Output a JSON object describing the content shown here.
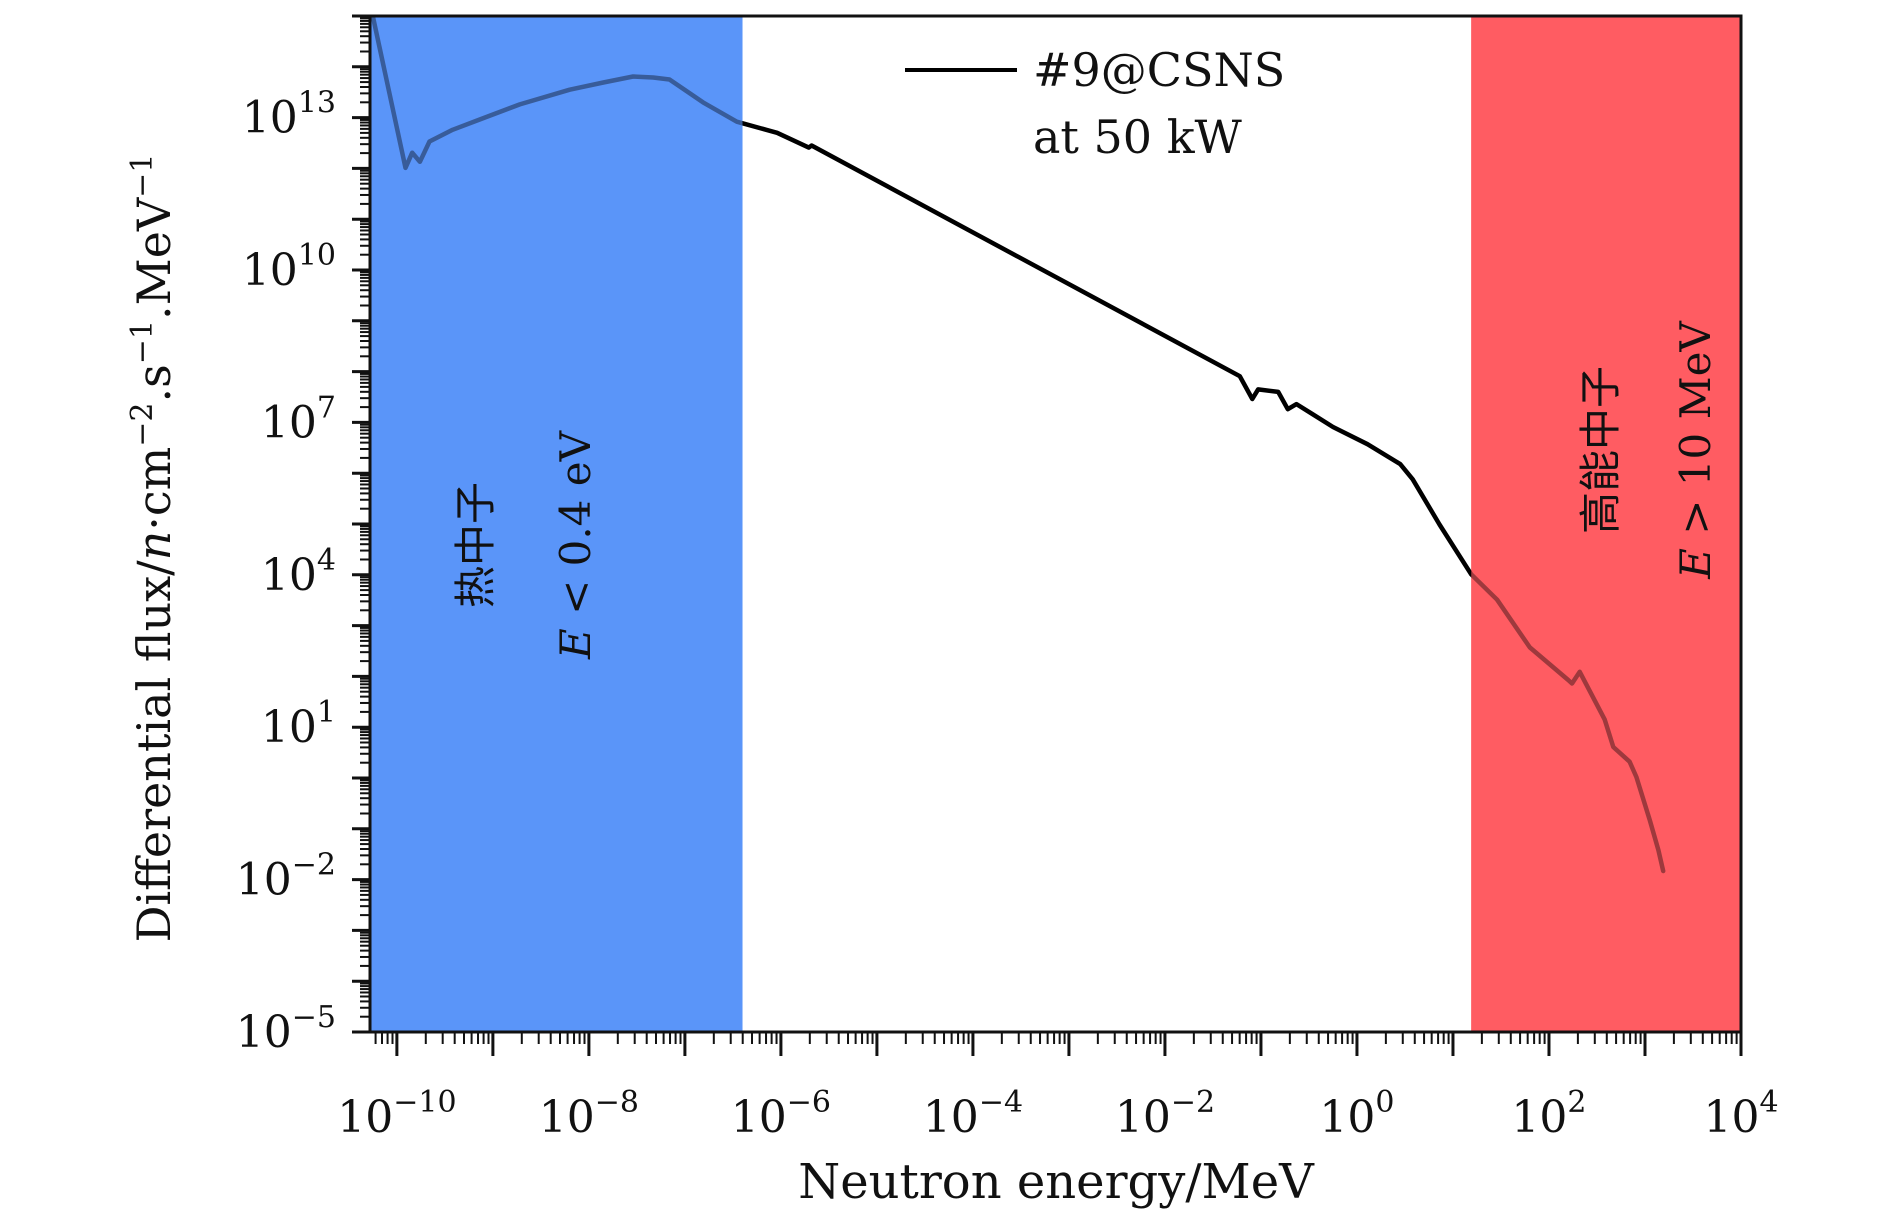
{
  "chart_data": {
    "type": "line",
    "title": "",
    "xlabel": "Neutron energy/MeV",
    "ylabel_parts": {
      "main": "Differential flux/",
      "n": "n",
      "rest": "·cm",
      "exp1": "−2",
      "s": ".s",
      "exp2": "−1",
      "mev": ".MeV",
      "exp3": "−1"
    },
    "xscale": "log",
    "yscale": "log",
    "xlim_log10": [
      -10.28,
      4
    ],
    "ylim_log10": [
      -5,
      15
    ],
    "x_ticks": [
      {
        "base": "10",
        "exp": "−10",
        "log10": -10
      },
      {
        "base": "10",
        "exp": "−8",
        "log10": -8
      },
      {
        "base": "10",
        "exp": "−6",
        "log10": -6
      },
      {
        "base": "10",
        "exp": "−4",
        "log10": -4
      },
      {
        "base": "10",
        "exp": "−2",
        "log10": -2
      },
      {
        "base": "10",
        "exp": "0",
        "log10": 0
      },
      {
        "base": "10",
        "exp": "2",
        "log10": 2
      },
      {
        "base": "10",
        "exp": "4",
        "log10": 4
      }
    ],
    "y_ticks": [
      {
        "base": "10",
        "exp": "−5",
        "log10": -5
      },
      {
        "base": "10",
        "exp": "−2",
        "log10": -2
      },
      {
        "base": "10",
        "exp": "1",
        "log10": 1
      },
      {
        "base": "10",
        "exp": "4",
        "log10": 4
      },
      {
        "base": "10",
        "exp": "7",
        "log10": 7
      },
      {
        "base": "10",
        "exp": "10",
        "log10": 10
      },
      {
        "base": "10",
        "exp": "13",
        "log10": 13
      }
    ],
    "grid": false,
    "legend": {
      "placement": "top-center",
      "entries": [
        {
          "label_line1": "#9@CSNS",
          "label_line2": "at 50 kW",
          "color": "#000000"
        }
      ]
    },
    "regions": [
      {
        "name": "thermal",
        "label_cn": "热中子",
        "label_cond_var": "E",
        "label_cond_rest": " < 0.4 eV",
        "x_from_log10": -10.28,
        "x_to_log10": -6.4,
        "color": "#5b95f9"
      },
      {
        "name": "high-energy",
        "label_cn": "高能中子",
        "label_cond_var": "E",
        "label_cond_rest": " > 10 MeV",
        "x_from_log10": 1.19,
        "x_to_log10": 4,
        "color": "#ff5c62"
      }
    ],
    "series": [
      {
        "name": "#9@CSNS at 50 kW",
        "color": "#000000",
        "points_log10": [
          [
            -10.25,
            14.99
          ],
          [
            -9.91,
            12.01
          ],
          [
            -9.84,
            12.31
          ],
          [
            -9.76,
            12.13
          ],
          [
            -9.66,
            12.53
          ],
          [
            -9.42,
            12.76
          ],
          [
            -9.14,
            12.96
          ],
          [
            -8.72,
            13.26
          ],
          [
            -8.2,
            13.55
          ],
          [
            -7.85,
            13.69
          ],
          [
            -7.54,
            13.81
          ],
          [
            -7.33,
            13.79
          ],
          [
            -7.16,
            13.75
          ],
          [
            -6.81,
            13.3
          ],
          [
            -6.46,
            12.92
          ],
          [
            -6.04,
            12.7
          ],
          [
            -5.71,
            12.41
          ],
          [
            -5.68,
            12.45
          ],
          [
            -1.22,
            7.91
          ],
          [
            -1.09,
            7.46
          ],
          [
            -1.03,
            7.65
          ],
          [
            -0.82,
            7.6
          ],
          [
            -0.72,
            7.26
          ],
          [
            -0.63,
            7.36
          ],
          [
            -0.46,
            7.16
          ],
          [
            -0.25,
            6.91
          ],
          [
            0.11,
            6.57
          ],
          [
            0.45,
            6.18
          ],
          [
            0.58,
            5.88
          ],
          [
            0.86,
            4.99
          ],
          [
            1.19,
            4.01
          ],
          [
            1.46,
            3.51
          ],
          [
            1.8,
            2.57
          ],
          [
            2.2,
            1.93
          ],
          [
            2.24,
            1.86
          ],
          [
            2.32,
            2.09
          ],
          [
            2.58,
            1.15
          ],
          [
            2.67,
            0.61
          ],
          [
            2.84,
            0.32
          ],
          [
            2.91,
            0.02
          ],
          [
            3.05,
            -0.83
          ],
          [
            3.14,
            -1.42
          ],
          [
            3.19,
            -1.83
          ]
        ]
      }
    ]
  }
}
